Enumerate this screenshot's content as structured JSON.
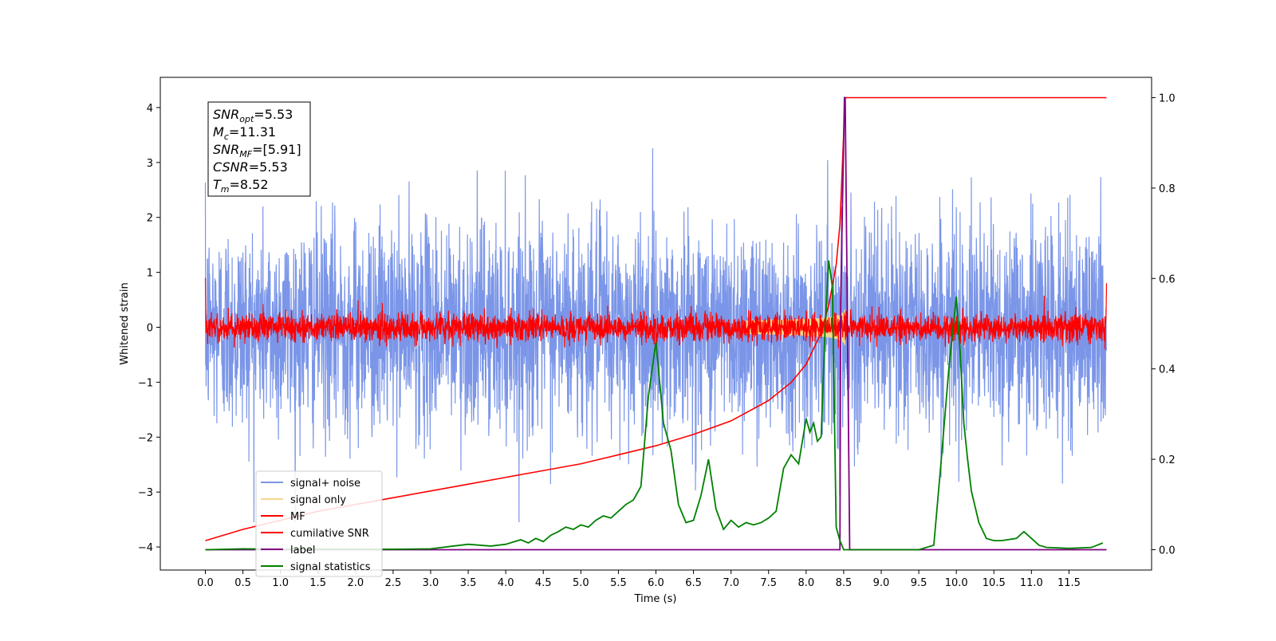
{
  "chart_data": {
    "type": "line",
    "xlabel": "Time (s)",
    "ylabel": "Whitened strain",
    "xlim": [
      -0.6,
      12.6
    ],
    "ylim": [
      -4.42,
      4.55
    ],
    "y2lim": [
      -0.045,
      1.045
    ],
    "xticks": [
      0.0,
      0.5,
      1.0,
      1.5,
      2.0,
      2.5,
      3.0,
      3.5,
      4.0,
      4.5,
      5.0,
      5.5,
      6.0,
      6.5,
      7.0,
      7.5,
      8.0,
      8.5,
      9.0,
      9.5,
      10.0,
      10.5,
      11.0,
      11.5
    ],
    "xtick_labels": [
      "0.0",
      "0.5",
      "1.0",
      "1.5",
      "2.0",
      "2.5",
      "3.0",
      "3.5",
      "4.0",
      "4.5",
      "5.0",
      "5.5",
      "6.0",
      "6.5",
      "7.0",
      "7.5",
      "8.0",
      "8.5",
      "9.0",
      "9.5",
      "10.0",
      "10.5",
      "11.0",
      "11.5"
    ],
    "yticks": [
      -4,
      -3,
      -2,
      -1,
      0,
      1,
      2,
      3,
      4
    ],
    "ytick_labels": [
      "−4",
      "−3",
      "−2",
      "−1",
      "0",
      "1",
      "2",
      "3",
      "4"
    ],
    "y2ticks": [
      0.0,
      0.2,
      0.4,
      0.6,
      0.8,
      1.0
    ],
    "y2tick_labels": [
      "0.0",
      "0.2",
      "0.4",
      "0.6",
      "0.8",
      "1.0"
    ],
    "grid": false,
    "legend_position": "lower-left",
    "annotation": {
      "lines": [
        {
          "name": "SNR",
          "sub": "opt",
          "value": "=5.53"
        },
        {
          "name": "M",
          "sub": "c",
          "value": "=11.31"
        },
        {
          "name": "SNR",
          "sub": "MF",
          "value": "=[5.91]"
        },
        {
          "name": "CSNR",
          "sub": "",
          "value": "=5.53"
        },
        {
          "name": "T",
          "sub": "m",
          "value": "=8.52"
        }
      ]
    },
    "series": [
      {
        "name": "signal+ noise",
        "color": "#7b96e8",
        "axis": "left",
        "kind": "noise",
        "x_range": [
          0.0,
          12.0
        ],
        "std": 0.95,
        "max_peak": 4.15
      },
      {
        "name": "signal only",
        "color": "#f5d58a",
        "axis": "left",
        "kind": "chirp",
        "merger_time": 8.52,
        "amplitude": 0.35
      },
      {
        "name": "MF",
        "color": "#ff0000",
        "axis": "left",
        "kind": "noise",
        "x_range": [
          0.0,
          12.0
        ],
        "std": 0.13
      },
      {
        "name": "cumilative SNR",
        "color": "#ff0000",
        "axis": "right",
        "x": [
          0.0,
          0.5,
          1.0,
          1.5,
          2.0,
          2.5,
          3.0,
          3.5,
          4.0,
          4.5,
          5.0,
          5.5,
          6.0,
          6.5,
          7.0,
          7.5,
          7.8,
          8.0,
          8.2,
          8.3,
          8.4,
          8.45,
          8.5,
          8.52,
          8.55,
          9.0,
          10.0,
          11.0,
          12.0
        ],
        "y": [
          0.02,
          0.045,
          0.065,
          0.085,
          0.1,
          0.115,
          0.13,
          0.145,
          0.16,
          0.175,
          0.19,
          0.21,
          0.23,
          0.255,
          0.285,
          0.33,
          0.37,
          0.41,
          0.48,
          0.54,
          0.63,
          0.72,
          0.92,
          1.0,
          1.0,
          1.0,
          1.0,
          1.0,
          1.0
        ]
      },
      {
        "name": "label",
        "color": "#800080",
        "axis": "right",
        "x": [
          0.0,
          8.45,
          8.46,
          8.51,
          8.52,
          8.58,
          8.59,
          12.0
        ],
        "y": [
          0.0,
          0.0,
          0.55,
          1.0,
          1.0,
          0.0,
          0.0,
          0.0
        ]
      },
      {
        "name": "signal statistics",
        "color": "#008000",
        "axis": "right",
        "x": [
          0.0,
          0.5,
          1.0,
          1.5,
          2.0,
          2.5,
          3.0,
          3.3,
          3.5,
          3.8,
          4.0,
          4.2,
          4.3,
          4.4,
          4.5,
          4.6,
          4.7,
          4.8,
          4.9,
          5.0,
          5.1,
          5.2,
          5.3,
          5.4,
          5.5,
          5.6,
          5.7,
          5.8,
          5.9,
          6.0,
          6.1,
          6.2,
          6.3,
          6.4,
          6.5,
          6.6,
          6.7,
          6.8,
          6.9,
          7.0,
          7.1,
          7.2,
          7.3,
          7.4,
          7.5,
          7.6,
          7.7,
          7.8,
          7.9,
          7.95,
          8.0,
          8.05,
          8.1,
          8.15,
          8.2,
          8.25,
          8.3,
          8.35,
          8.4,
          8.45,
          8.5,
          8.55,
          8.6,
          9.0,
          9.5,
          9.7,
          9.8,
          9.9,
          10.0,
          10.05,
          10.1,
          10.15,
          10.2,
          10.3,
          10.4,
          10.5,
          10.6,
          10.8,
          10.9,
          11.0,
          11.1,
          11.2,
          11.5,
          11.8,
          11.95
        ],
        "y": [
          0.0,
          0.002,
          0.001,
          0.001,
          0.001,
          0.001,
          0.002,
          0.008,
          0.012,
          0.008,
          0.012,
          0.022,
          0.015,
          0.025,
          0.018,
          0.032,
          0.04,
          0.05,
          0.045,
          0.055,
          0.05,
          0.065,
          0.075,
          0.07,
          0.085,
          0.1,
          0.11,
          0.14,
          0.34,
          0.46,
          0.28,
          0.22,
          0.1,
          0.06,
          0.065,
          0.12,
          0.2,
          0.09,
          0.045,
          0.065,
          0.05,
          0.06,
          0.055,
          0.06,
          0.07,
          0.085,
          0.18,
          0.21,
          0.19,
          0.24,
          0.29,
          0.26,
          0.28,
          0.24,
          0.25,
          0.48,
          0.64,
          0.58,
          0.05,
          0.02,
          0.0,
          0.0,
          0.0,
          0.0,
          0.0,
          0.01,
          0.2,
          0.4,
          0.56,
          0.44,
          0.28,
          0.2,
          0.13,
          0.06,
          0.025,
          0.02,
          0.02,
          0.025,
          0.04,
          0.025,
          0.01,
          0.005,
          0.003,
          0.005,
          0.015
        ]
      }
    ]
  }
}
